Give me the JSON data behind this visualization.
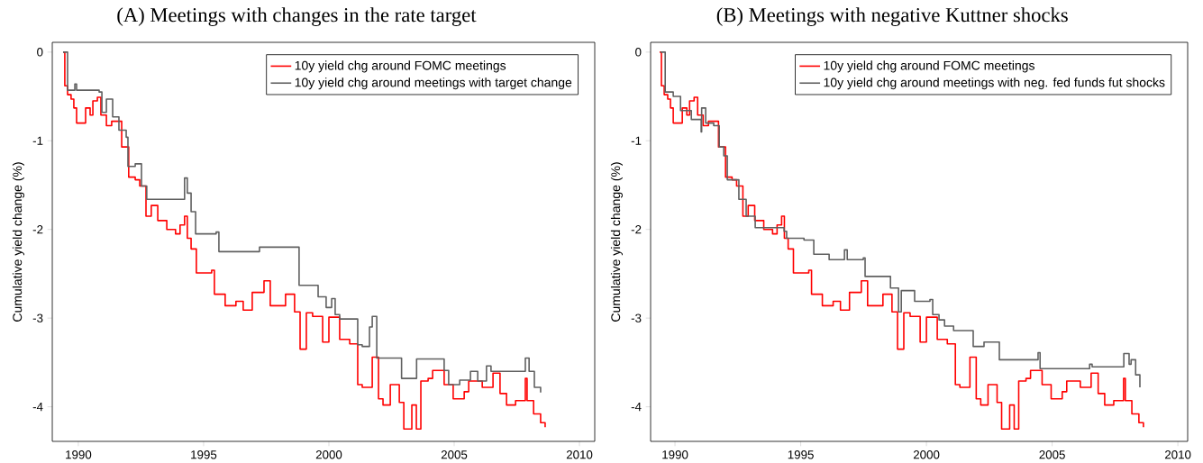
{
  "chart_data": [
    {
      "type": "step",
      "title": "(A) Meetings with changes in the rate target",
      "ylabel": "Cumulative yield change (%)",
      "xlim": [
        1988.96,
        2010.61
      ],
      "ylim": [
        -4.39,
        0.11
      ],
      "xticks": [
        1990,
        1995,
        2000,
        2005,
        2010
      ],
      "yticks": [
        -4,
        -3,
        -2,
        -1,
        0
      ],
      "legend": "top right",
      "series": [
        {
          "name": "10y yield chg around FOMC meetings",
          "color": "#ff0000",
          "x": [
            1989.39,
            1989.46,
            1989.57,
            1989.71,
            1989.82,
            1989.93,
            1990.29,
            1990.47,
            1990.58,
            1990.76,
            1990.9,
            1991.12,
            1991.33,
            1991.73,
            1992.01,
            1992.27,
            1992.45,
            1992.7,
            1992.91,
            1993.17,
            1993.53,
            1993.88,
            1994.06,
            1994.24,
            1994.35,
            1994.5,
            1994.71,
            1995.32,
            1995.43,
            1995.86,
            1996.29,
            1996.58,
            1996.94,
            1997.41,
            1997.66,
            1998.27,
            1998.63,
            1998.85,
            1999.1,
            1999.35,
            1999.75,
            2000.0,
            2000.43,
            2000.83,
            2001.15,
            2001.33,
            2001.73,
            2001.98,
            2002.16,
            2002.45,
            2002.81,
            2002.99,
            2003.31,
            2003.49,
            2003.67,
            2003.96,
            2004.14,
            2004.5,
            2004.6,
            2004.96,
            2005.4,
            2005.58,
            2006.12,
            2006.55,
            2006.83,
            2007.09,
            2007.45,
            2007.84,
            2007.91,
            2008.17,
            2008.45,
            2008.63
          ],
          "values": [
            0,
            -0.38,
            -0.48,
            -0.53,
            -0.63,
            -0.8,
            -0.63,
            -0.71,
            -0.55,
            -0.51,
            -0.71,
            -0.83,
            -0.78,
            -1.07,
            -1.41,
            -1.44,
            -1.51,
            -1.85,
            -1.73,
            -1.9,
            -2.0,
            -2.05,
            -1.95,
            -1.85,
            -2.1,
            -2.22,
            -2.49,
            -2.46,
            -2.73,
            -2.86,
            -2.81,
            -2.91,
            -2.71,
            -2.58,
            -2.86,
            -2.73,
            -2.93,
            -3.35,
            -2.94,
            -2.98,
            -3.27,
            -2.99,
            -3.24,
            -3.29,
            -3.75,
            -3.78,
            -3.44,
            -3.91,
            -3.98,
            -3.75,
            -3.95,
            -4.25,
            -3.98,
            -4.25,
            -3.71,
            -3.68,
            -3.59,
            -3.59,
            -3.75,
            -3.91,
            -3.83,
            -3.71,
            -3.78,
            -3.62,
            -3.85,
            -3.98,
            -3.93,
            -3.68,
            -3.93,
            -4.08,
            -4.18,
            -4.23
          ]
        },
        {
          "name": "10y yield chg around meetings with target change",
          "color": "#606060",
          "x": [
            1989.39,
            1989.57,
            1989.86,
            1989.93,
            1990.83,
            1990.94,
            1991.12,
            1991.37,
            1991.62,
            1991.91,
            1991.98,
            1992.27,
            1992.52,
            1992.73,
            1994.06,
            1994.24,
            1994.35,
            1994.5,
            1994.68,
            1995.5,
            1995.61,
            1997.23,
            1998.81,
            1999.53,
            1999.57,
            1999.89,
            2000.11,
            2000.25,
            2000.43,
            2001.01,
            2001.15,
            2001.33,
            2001.62,
            2001.73,
            2001.91,
            2002.88,
            2002.9,
            2003.49,
            2003.5,
            2004.53,
            2004.6,
            2004.78,
            2005.22,
            2005.65,
            2005.94,
            2006.29,
            2006.47,
            2007.66,
            2007.84,
            2007.99,
            2008.2,
            2008.45
          ],
          "values": [
            0,
            -0.43,
            -0.36,
            -0.43,
            -0.45,
            -0.68,
            -0.53,
            -0.73,
            -0.88,
            -0.96,
            -1.29,
            -1.26,
            -1.51,
            -1.66,
            -1.66,
            -1.42,
            -1.59,
            -1.8,
            -2.05,
            -2.03,
            -2.25,
            -2.2,
            -2.63,
            -2.63,
            -2.76,
            -2.88,
            -2.78,
            -2.96,
            -3.01,
            -3.01,
            -3.3,
            -3.32,
            -3.1,
            -2.98,
            -3.45,
            -3.45,
            -3.68,
            -3.68,
            -3.46,
            -3.46,
            -3.59,
            -3.75,
            -3.7,
            -3.6,
            -3.71,
            -3.54,
            -3.6,
            -3.6,
            -3.45,
            -3.6,
            -3.78,
            -3.84
          ]
        }
      ]
    },
    {
      "type": "step",
      "title": "(B) Meetings with negative Kuttner shocks",
      "ylabel": "Cumulative yield change (%)",
      "xlim": [
        1989.03,
        2010.39
      ],
      "ylim": [
        -4.39,
        0.11
      ],
      "xticks": [
        1990,
        1995,
        2000,
        2005,
        2010
      ],
      "yticks": [
        -4,
        -3,
        -2,
        -1,
        0
      ],
      "legend": "top right",
      "series": [
        {
          "name": "10y yield chg around FOMC meetings",
          "color": "#ff0000",
          "x": [
            1989.39,
            1989.46,
            1989.57,
            1989.71,
            1989.82,
            1989.93,
            1990.29,
            1990.47,
            1990.58,
            1990.76,
            1990.9,
            1991.12,
            1991.33,
            1991.73,
            1992.01,
            1992.27,
            1992.45,
            1992.7,
            1992.91,
            1993.17,
            1993.53,
            1993.88,
            1994.06,
            1994.24,
            1994.35,
            1994.5,
            1994.71,
            1995.32,
            1995.43,
            1995.86,
            1996.29,
            1996.58,
            1996.94,
            1997.41,
            1997.66,
            1998.27,
            1998.63,
            1998.85,
            1999.1,
            1999.35,
            1999.75,
            2000.0,
            2000.43,
            2000.83,
            2001.15,
            2001.33,
            2001.73,
            2001.98,
            2002.16,
            2002.45,
            2002.81,
            2002.99,
            2003.31,
            2003.49,
            2003.67,
            2003.96,
            2004.14,
            2004.5,
            2004.6,
            2004.96,
            2005.4,
            2005.58,
            2006.12,
            2006.55,
            2006.83,
            2007.09,
            2007.45,
            2007.84,
            2007.91,
            2008.17,
            2008.45,
            2008.63
          ],
          "values": [
            0,
            -0.38,
            -0.48,
            -0.53,
            -0.63,
            -0.8,
            -0.63,
            -0.71,
            -0.55,
            -0.51,
            -0.71,
            -0.83,
            -0.78,
            -1.07,
            -1.41,
            -1.44,
            -1.51,
            -1.85,
            -1.73,
            -1.9,
            -2.0,
            -2.05,
            -1.95,
            -1.85,
            -2.1,
            -2.22,
            -2.49,
            -2.46,
            -2.73,
            -2.86,
            -2.81,
            -2.91,
            -2.71,
            -2.58,
            -2.86,
            -2.73,
            -2.93,
            -3.35,
            -2.94,
            -2.98,
            -3.27,
            -2.99,
            -3.24,
            -3.29,
            -3.75,
            -3.78,
            -3.44,
            -3.91,
            -3.98,
            -3.75,
            -3.95,
            -4.25,
            -3.98,
            -4.25,
            -3.71,
            -3.68,
            -3.59,
            -3.59,
            -3.75,
            -3.91,
            -3.83,
            -3.71,
            -3.78,
            -3.62,
            -3.85,
            -3.98,
            -3.93,
            -3.68,
            -3.93,
            -4.08,
            -4.18,
            -4.23
          ]
        },
        {
          "name": "10y yield chg around meetings with neg. fed funds fut shocks",
          "color": "#606060",
          "x": [
            1989.42,
            1989.61,
            1989.93,
            1990.14,
            1990.22,
            1990.65,
            1990.86,
            1991.04,
            1991.06,
            1991.22,
            1991.54,
            1991.76,
            1991.94,
            1992.08,
            1992.37,
            1992.54,
            1992.83,
            1993.19,
            1993.69,
            1994.34,
            1994.44,
            1995.13,
            1995.52,
            1996.02,
            1996.13,
            1996.59,
            1996.74,
            1996.85,
            1997.49,
            1997.56,
            1998.39,
            1998.57,
            1998.82,
            1998.89,
            1999.0,
            1999.43,
            1999.53,
            1999.78,
            2000.14,
            2000.25,
            2000.5,
            2000.72,
            2001.08,
            2001.76,
            2001.86,
            2002.29,
            2002.87,
            2002.9,
            2004.37,
            2004.44,
            2004.52,
            2006.45,
            2006.49,
            2006.59,
            2007.71,
            2007.85,
            2008.06,
            2008.14,
            2008.32,
            2008.49
          ],
          "values": [
            0,
            -0.45,
            -0.5,
            -0.5,
            -0.66,
            -0.76,
            -0.76,
            -0.9,
            -0.63,
            -0.8,
            -0.83,
            -1.07,
            -1.17,
            -1.44,
            -1.44,
            -1.66,
            -1.85,
            -1.98,
            -1.98,
            -2.02,
            -2.1,
            -2.12,
            -2.28,
            -2.28,
            -2.34,
            -2.34,
            -2.23,
            -2.34,
            -2.32,
            -2.53,
            -2.53,
            -2.66,
            -2.66,
            -2.93,
            -2.69,
            -2.69,
            -2.81,
            -2.81,
            -2.79,
            -2.96,
            -3.02,
            -3.09,
            -3.14,
            -3.14,
            -3.32,
            -3.27,
            -3.27,
            -3.47,
            -3.47,
            -3.39,
            -3.57,
            -3.57,
            -3.52,
            -3.55,
            -3.55,
            -3.4,
            -3.52,
            -3.47,
            -3.64,
            -3.78
          ]
        }
      ]
    }
  ]
}
